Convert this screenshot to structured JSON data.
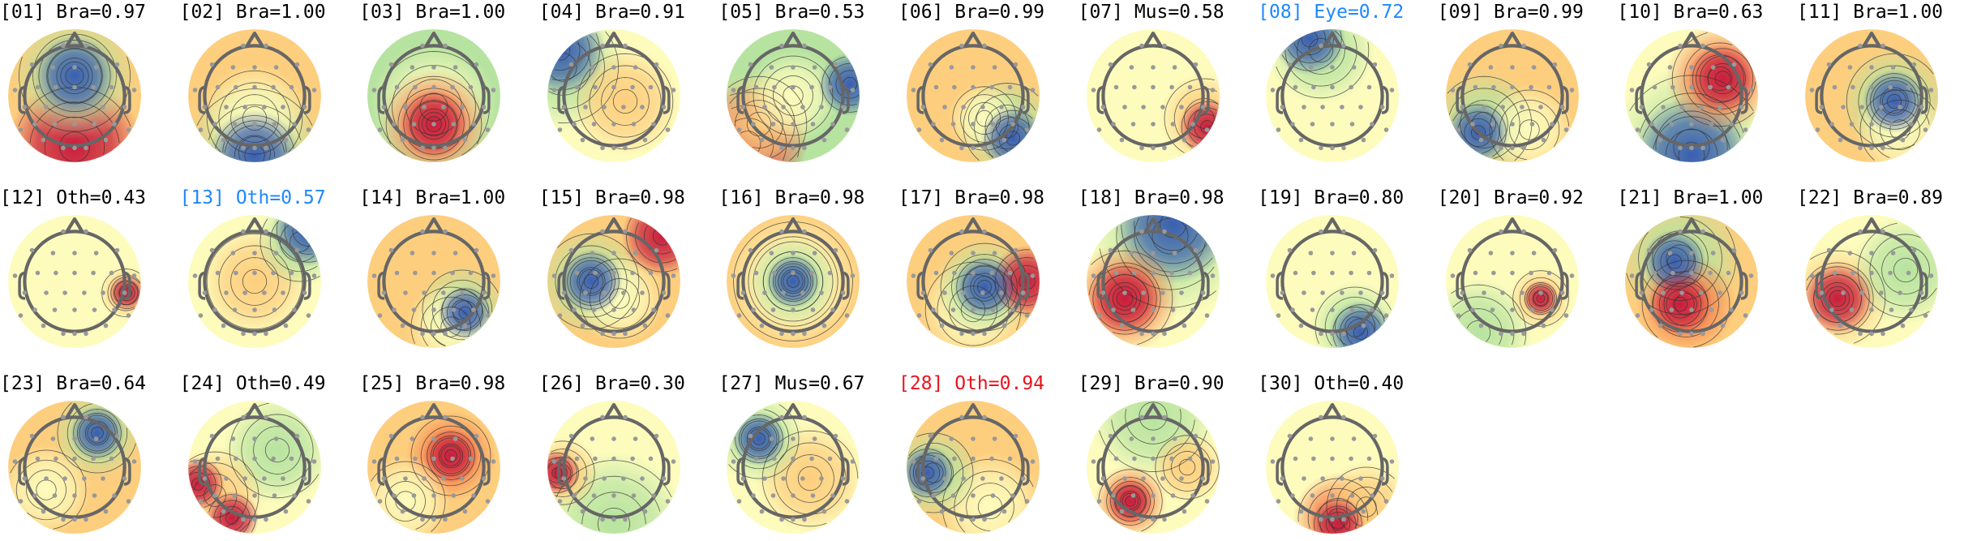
{
  "colors": {
    "default_title": "#000000",
    "highlight_blue": "#1e88ff",
    "highlight_red": "#e8141e",
    "electrode": "#999999",
    "head_outline": "#666666"
  },
  "colormap": [
    "#3a5fb0",
    "#5db7a5",
    "#b7e3a0",
    "#fdfcbd",
    "#fdce7e",
    "#f57f4c",
    "#c81d3e"
  ],
  "components": [
    {
      "label": "[01] Bra=0.97",
      "color": "default"
    },
    {
      "label": "[02] Bra=1.00",
      "color": "default"
    },
    {
      "label": "[03] Bra=1.00",
      "color": "default"
    },
    {
      "label": "[04] Bra=0.91",
      "color": "default"
    },
    {
      "label": "[05] Bra=0.53",
      "color": "default"
    },
    {
      "label": "[06] Bra=0.99",
      "color": "default"
    },
    {
      "label": "[07] Mus=0.58",
      "color": "default"
    },
    {
      "label": "[08] Eye=0.72",
      "color": "blue"
    },
    {
      "label": "[09] Bra=0.99",
      "color": "default"
    },
    {
      "label": "[10] Bra=0.63",
      "color": "default"
    },
    {
      "label": "[11] Bra=1.00",
      "color": "default"
    },
    {
      "label": "[12] Oth=0.43",
      "color": "default"
    },
    {
      "label": "[13] Oth=0.57",
      "color": "blue"
    },
    {
      "label": "[14] Bra=1.00",
      "color": "default"
    },
    {
      "label": "[15] Bra=0.98",
      "color": "default"
    },
    {
      "label": "[16] Bra=0.98",
      "color": "default"
    },
    {
      "label": "[17] Bra=0.98",
      "color": "default"
    },
    {
      "label": "[18] Bra=0.98",
      "color": "default"
    },
    {
      "label": "[19] Bra=0.80",
      "color": "default"
    },
    {
      "label": "[20] Bra=0.92",
      "color": "default"
    },
    {
      "label": "[21] Bra=1.00",
      "color": "default"
    },
    {
      "label": "[22] Bra=0.89",
      "color": "default"
    },
    {
      "label": "[23] Bra=0.64",
      "color": "default"
    },
    {
      "label": "[24] Oth=0.49",
      "color": "default"
    },
    {
      "label": "[25] Bra=0.98",
      "color": "default"
    },
    {
      "label": "[26] Bra=0.30",
      "color": "default"
    },
    {
      "label": "[27] Mus=0.67",
      "color": "default"
    },
    {
      "label": "[28] Oth=0.94",
      "color": "red"
    },
    {
      "label": "[29] Bra=0.90",
      "color": "default"
    },
    {
      "label": "[30] Oth=0.40",
      "color": "default"
    }
  ]
}
